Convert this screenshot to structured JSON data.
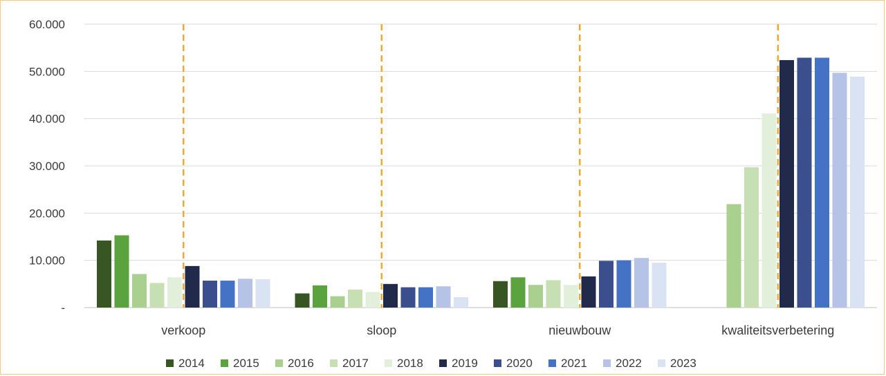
{
  "chart_data": {
    "type": "bar",
    "title": "",
    "xlabel": "",
    "ylabel": "",
    "ylim": [
      0,
      60000
    ],
    "y_ticks": [
      {
        "value": 0,
        "label": "-"
      },
      {
        "value": 10000,
        "label": "10.000"
      },
      {
        "value": 20000,
        "label": "20.000"
      },
      {
        "value": 30000,
        "label": "30.000"
      },
      {
        "value": 40000,
        "label": "40.000"
      },
      {
        "value": 50000,
        "label": "50.000"
      },
      {
        "value": 60000,
        "label": "60.000"
      }
    ],
    "grid": true,
    "legend_position": "bottom",
    "categories": [
      "verkoop",
      "sloop",
      "nieuwbouw",
      "kwaliteitsverbetering"
    ],
    "divider_color": "#f0a830",
    "series": [
      {
        "name": "2014",
        "color": "#375623",
        "values": [
          14200,
          3000,
          5600,
          null
        ]
      },
      {
        "name": "2015",
        "color": "#5aa33f",
        "values": [
          15300,
          4700,
          6400,
          null
        ]
      },
      {
        "name": "2016",
        "color": "#a9d08e",
        "values": [
          7100,
          2400,
          4800,
          21900
        ]
      },
      {
        "name": "2017",
        "color": "#c6e0b4",
        "values": [
          5200,
          3800,
          5800,
          29700
        ]
      },
      {
        "name": "2018",
        "color": "#e2efda",
        "values": [
          6400,
          3300,
          4800,
          41100
        ]
      },
      {
        "name": "2019",
        "color": "#222a4c",
        "values": [
          8800,
          5000,
          6600,
          52400
        ]
      },
      {
        "name": "2020",
        "color": "#3b4e8e",
        "values": [
          5700,
          4300,
          9900,
          52900
        ]
      },
      {
        "name": "2021",
        "color": "#4472c4",
        "values": [
          5700,
          4300,
          10000,
          52900
        ]
      },
      {
        "name": "2022",
        "color": "#b4c3e6",
        "values": [
          6100,
          4500,
          10500,
          49700
        ]
      },
      {
        "name": "2023",
        "color": "#dae3f3",
        "values": [
          6000,
          2200,
          9500,
          48900
        ]
      }
    ]
  }
}
